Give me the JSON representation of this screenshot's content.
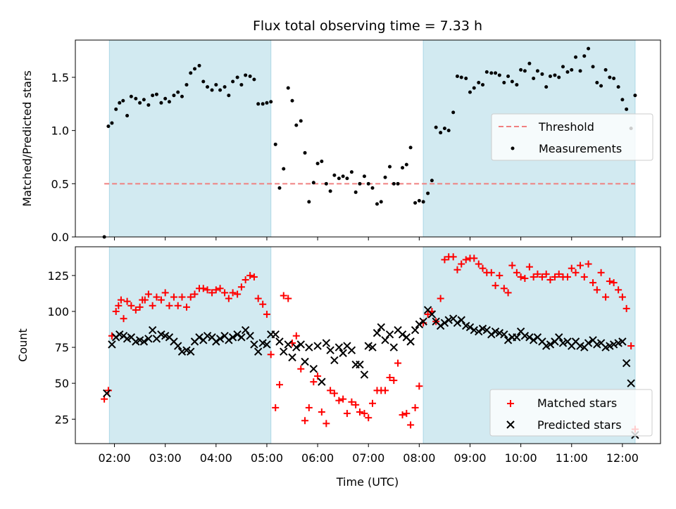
{
  "title": "Flux total observing time = 7.33 h",
  "colors": {
    "shade": "#add8e6",
    "threshold": "#f08080",
    "matched": "#ff0000",
    "predicted": "#000000"
  },
  "chart_data": [
    {
      "type": "scatter",
      "panel": "top",
      "ylabel": "Matched/Predicted stars",
      "ylim": [
        0,
        1.85
      ],
      "yticks": [
        "0.0",
        "0.5",
        "1.0",
        "1.5"
      ],
      "xlim": [
        1.23,
        12.75
      ],
      "threshold": {
        "name": "Threshold",
        "value": 0.5,
        "x": [
          1.8,
          12.25
        ]
      },
      "shaded_intervals": [
        [
          1.9,
          5.08
        ],
        [
          8.08,
          12.25
        ]
      ],
      "legend": {
        "position": "center-right",
        "entries": [
          "Threshold",
          "Measurements"
        ]
      },
      "series": [
        {
          "name": "Measurements",
          "x": [
            1.8,
            1.88,
            1.95,
            2.03,
            2.1,
            2.17,
            2.25,
            2.33,
            2.42,
            2.5,
            2.58,
            2.67,
            2.75,
            2.83,
            2.92,
            3.0,
            3.08,
            3.17,
            3.25,
            3.33,
            3.42,
            3.5,
            3.58,
            3.67,
            3.75,
            3.83,
            3.92,
            4.0,
            4.08,
            4.17,
            4.25,
            4.33,
            4.42,
            4.5,
            4.58,
            4.67,
            4.75,
            4.83,
            4.92,
            5.0,
            5.08,
            5.17,
            5.25,
            5.33,
            5.42,
            5.5,
            5.58,
            5.67,
            5.75,
            5.83,
            5.92,
            6.0,
            6.08,
            6.17,
            6.25,
            6.33,
            6.42,
            6.5,
            6.58,
            6.67,
            6.75,
            6.83,
            6.92,
            7.0,
            7.08,
            7.17,
            7.25,
            7.33,
            7.42,
            7.5,
            7.58,
            7.67,
            7.75,
            7.83,
            7.92,
            8.0,
            8.08,
            8.17,
            8.25,
            8.33,
            8.42,
            8.5,
            8.58,
            8.67,
            8.75,
            8.83,
            8.92,
            9.0,
            9.08,
            9.17,
            9.25,
            9.33,
            9.42,
            9.5,
            9.58,
            9.67,
            9.75,
            9.83,
            9.92,
            10.0,
            10.08,
            10.17,
            10.25,
            10.33,
            10.42,
            10.5,
            10.58,
            10.67,
            10.75,
            10.83,
            10.92,
            11.0,
            11.08,
            11.17,
            11.25,
            11.33,
            11.42,
            11.5,
            11.58,
            11.67,
            11.75,
            11.83,
            11.92,
            12.0,
            12.08,
            12.17,
            12.25
          ],
          "y": [
            0.0,
            1.04,
            1.07,
            1.2,
            1.26,
            1.28,
            1.14,
            1.32,
            1.3,
            1.26,
            1.29,
            1.24,
            1.33,
            1.34,
            1.26,
            1.3,
            1.27,
            1.33,
            1.36,
            1.32,
            1.43,
            1.54,
            1.58,
            1.61,
            1.46,
            1.41,
            1.38,
            1.43,
            1.38,
            1.41,
            1.33,
            1.46,
            1.5,
            1.43,
            1.52,
            1.51,
            1.48,
            1.25,
            1.25,
            1.26,
            1.27,
            0.87,
            0.46,
            0.64,
            1.4,
            1.28,
            1.05,
            1.09,
            0.79,
            0.33,
            0.51,
            0.69,
            0.71,
            0.5,
            0.43,
            0.58,
            0.55,
            0.57,
            0.55,
            0.61,
            0.42,
            0.5,
            0.57,
            0.5,
            0.46,
            0.31,
            0.33,
            0.56,
            0.66,
            0.5,
            0.5,
            0.65,
            0.68,
            0.84,
            0.32,
            0.34,
            0.33,
            0.41,
            0.53,
            1.03,
            0.98,
            1.02,
            1.0,
            1.17,
            1.51,
            1.5,
            1.49,
            1.36,
            1.4,
            1.45,
            1.43,
            1.55,
            1.54,
            1.54,
            1.52,
            1.45,
            1.51,
            1.46,
            1.43,
            1.57,
            1.56,
            1.63,
            1.49,
            1.56,
            1.53,
            1.41,
            1.51,
            1.52,
            1.5,
            1.6,
            1.55,
            1.57,
            1.69,
            1.56,
            1.7,
            1.77,
            1.6,
            1.45,
            1.42,
            1.57,
            1.5,
            1.49,
            1.41,
            1.29,
            1.2,
            1.02,
            1.33
          ]
        }
      ]
    },
    {
      "type": "scatter",
      "panel": "bottom",
      "xlabel": "Time (UTC)",
      "ylabel": "Count",
      "ylim": [
        8,
        145
      ],
      "yticks": [
        "25",
        "50",
        "75",
        "100",
        "125"
      ],
      "xlim": [
        1.23,
        12.75
      ],
      "xticks": [
        "02:00",
        "03:00",
        "04:00",
        "05:00",
        "06:00",
        "07:00",
        "08:00",
        "09:00",
        "10:00",
        "11:00",
        "12:00"
      ],
      "shaded_intervals": [
        [
          1.9,
          5.08
        ],
        [
          8.08,
          12.25
        ]
      ],
      "legend": {
        "position": "bottom-right",
        "entries": [
          "Matched stars",
          "Predicted stars"
        ]
      },
      "series": [
        {
          "name": "Matched stars",
          "marker": "plus",
          "x": [
            1.8,
            1.88,
            1.95,
            2.03,
            2.08,
            2.13,
            2.18,
            2.25,
            2.33,
            2.42,
            2.5,
            2.55,
            2.6,
            2.67,
            2.75,
            2.83,
            2.92,
            3.0,
            3.08,
            3.17,
            3.25,
            3.33,
            3.42,
            3.5,
            3.58,
            3.67,
            3.75,
            3.83,
            3.92,
            4.0,
            4.08,
            4.17,
            4.25,
            4.33,
            4.42,
            4.5,
            4.58,
            4.67,
            4.75,
            4.83,
            4.92,
            5.0,
            5.08,
            5.17,
            5.25,
            5.33,
            5.42,
            5.5,
            5.58,
            5.67,
            5.75,
            5.83,
            5.92,
            6.0,
            6.08,
            6.17,
            6.25,
            6.33,
            6.42,
            6.5,
            6.58,
            6.67,
            6.75,
            6.83,
            6.92,
            7.0,
            7.08,
            7.17,
            7.25,
            7.33,
            7.42,
            7.5,
            7.58,
            7.67,
            7.75,
            7.83,
            7.92,
            8.0,
            8.08,
            8.17,
            8.25,
            8.33,
            8.42,
            8.5,
            8.58,
            8.67,
            8.75,
            8.83,
            8.92,
            9.0,
            9.08,
            9.17,
            9.25,
            9.33,
            9.42,
            9.5,
            9.58,
            9.67,
            9.75,
            9.83,
            9.92,
            10.0,
            10.08,
            10.17,
            10.25,
            10.33,
            10.42,
            10.5,
            10.58,
            10.67,
            10.75,
            10.83,
            10.92,
            11.0,
            11.08,
            11.17,
            11.25,
            11.33,
            11.42,
            11.5,
            11.58,
            11.67,
            11.75,
            11.83,
            11.92,
            12.0,
            12.08,
            12.17,
            12.25
          ],
          "y": [
            39,
            45,
            83,
            100,
            104,
            108,
            95,
            107,
            104,
            101,
            103,
            108,
            108,
            112,
            104,
            110,
            108,
            113,
            104,
            110,
            104,
            110,
            103,
            110,
            112,
            116,
            116,
            115,
            113,
            115,
            116,
            113,
            109,
            113,
            112,
            117,
            122,
            125,
            124,
            109,
            105,
            98,
            70,
            33,
            49,
            111,
            109,
            78,
            83,
            60,
            24,
            33,
            51,
            55,
            30,
            22,
            45,
            43,
            38,
            39,
            29,
            37,
            35,
            30,
            29,
            26,
            36,
            45,
            45,
            45,
            54,
            52,
            64,
            28,
            29,
            21,
            33,
            48,
            92,
            98,
            100,
            93,
            109,
            136,
            138,
            138,
            129,
            133,
            136,
            137,
            137,
            133,
            130,
            127,
            127,
            118,
            125,
            116,
            113,
            132,
            127,
            124,
            123,
            131,
            124,
            126,
            124,
            126,
            122,
            124,
            126,
            124,
            124,
            130,
            127,
            132,
            124,
            133,
            120,
            115,
            127,
            110,
            121,
            120,
            115,
            110,
            102,
            76,
            18
          ]
        },
        {
          "name": "Predicted stars",
          "marker": "x",
          "x": [
            1.85,
            1.95,
            2.03,
            2.1,
            2.18,
            2.25,
            2.33,
            2.42,
            2.5,
            2.58,
            2.67,
            2.75,
            2.83,
            2.92,
            3.0,
            3.08,
            3.17,
            3.25,
            3.33,
            3.42,
            3.5,
            3.58,
            3.67,
            3.75,
            3.83,
            3.92,
            4.0,
            4.08,
            4.17,
            4.25,
            4.33,
            4.42,
            4.5,
            4.58,
            4.67,
            4.75,
            4.83,
            4.92,
            5.0,
            5.08,
            5.17,
            5.25,
            5.33,
            5.42,
            5.5,
            5.58,
            5.67,
            5.75,
            5.83,
            5.92,
            6.0,
            6.08,
            6.17,
            6.25,
            6.33,
            6.42,
            6.5,
            6.58,
            6.67,
            6.75,
            6.83,
            6.92,
            7.0,
            7.08,
            7.17,
            7.25,
            7.33,
            7.42,
            7.5,
            7.58,
            7.67,
            7.75,
            7.83,
            7.92,
            8.0,
            8.08,
            8.17,
            8.25,
            8.33,
            8.42,
            8.5,
            8.58,
            8.67,
            8.75,
            8.83,
            8.92,
            9.0,
            9.08,
            9.17,
            9.25,
            9.33,
            9.42,
            9.5,
            9.58,
            9.67,
            9.75,
            9.83,
            9.92,
            10.0,
            10.08,
            10.17,
            10.25,
            10.33,
            10.42,
            10.5,
            10.58,
            10.67,
            10.75,
            10.83,
            10.92,
            11.0,
            11.08,
            11.17,
            11.25,
            11.33,
            11.42,
            11.5,
            11.58,
            11.67,
            11.75,
            11.83,
            11.92,
            12.0,
            12.08,
            12.17,
            12.25
          ],
          "y": [
            43,
            77,
            82,
            84,
            83,
            81,
            82,
            79,
            80,
            79,
            81,
            87,
            81,
            84,
            83,
            82,
            79,
            76,
            72,
            73,
            72,
            79,
            82,
            80,
            83,
            82,
            79,
            81,
            83,
            80,
            82,
            84,
            82,
            87,
            83,
            77,
            72,
            78,
            77,
            84,
            84,
            79,
            72,
            77,
            68,
            75,
            77,
            65,
            75,
            60,
            76,
            51,
            78,
            73,
            66,
            75,
            71,
            76,
            73,
            63,
            63,
            56,
            76,
            75,
            85,
            89,
            80,
            84,
            75,
            87,
            84,
            82,
            79,
            87,
            91,
            93,
            101,
            98,
            93,
            90,
            92,
            94,
            95,
            92,
            94,
            90,
            89,
            87,
            86,
            88,
            87,
            84,
            86,
            85,
            84,
            80,
            82,
            82,
            86,
            83,
            82,
            80,
            82,
            79,
            76,
            77,
            79,
            82,
            78,
            79,
            76,
            79,
            76,
            75,
            78,
            80,
            77,
            78,
            75,
            76,
            77,
            78,
            79,
            64,
            50,
            14
          ]
        }
      ]
    }
  ]
}
